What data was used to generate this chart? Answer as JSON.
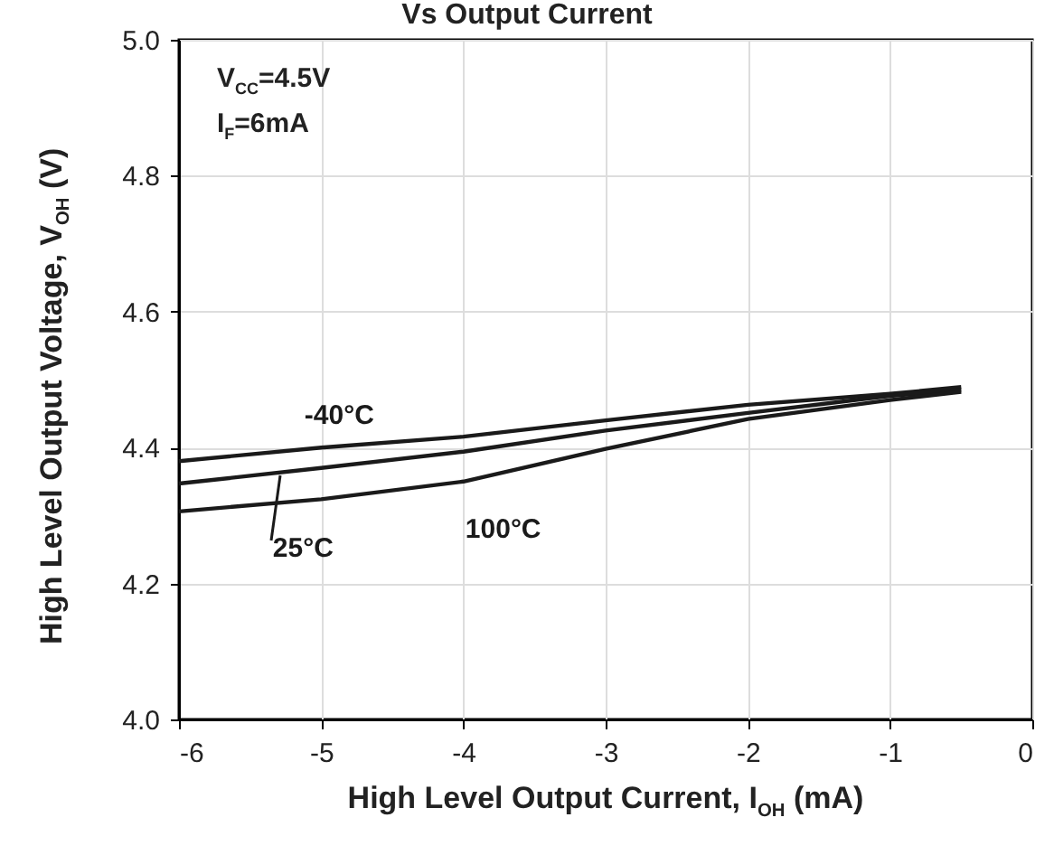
{
  "chart_data": {
    "type": "line",
    "title": "Vs Output Current",
    "xlabel": "High Level Output Current, I$_{OH}$ (mA)",
    "ylabel": "High Level Output Voltage, V$_{OH}$ (V)",
    "annotations": [
      "V$_{CC}$=4.5V",
      "I$_{F}$=6mA"
    ],
    "x": [
      -6,
      -5,
      -4,
      -3,
      -2,
      -1,
      -0.5
    ],
    "series": [
      {
        "name": "-40°C",
        "color": "#1a1a1a",
        "values": [
          4.38,
          4.4,
          4.416,
          4.44,
          4.463,
          4.479,
          4.489
        ]
      },
      {
        "name": "25°C",
        "color": "#1a1a1a",
        "values": [
          4.347,
          4.37,
          4.394,
          4.425,
          4.451,
          4.476,
          4.485
        ]
      },
      {
        "name": "100°C",
        "color": "#1a1a1a",
        "values": [
          4.306,
          4.324,
          4.35,
          4.398,
          4.442,
          4.47,
          4.482
        ]
      }
    ],
    "xlim": [
      -6,
      0
    ],
    "xticks": [
      -6,
      -5,
      -4,
      -3,
      -2,
      -1,
      0
    ],
    "ylim": [
      4.0,
      5.0
    ],
    "yticks": [
      {
        "value": 4.0,
        "label": "4.0"
      },
      {
        "value": 4.2,
        "label": "4.2"
      },
      {
        "value": 4.4,
        "label": "4.4"
      },
      {
        "value": 4.6,
        "label": "4.6"
      },
      {
        "value": 4.8,
        "label": "4.8"
      },
      {
        "value": 5.0,
        "label": "5.0"
      }
    ],
    "grid": true,
    "line_style": "solid"
  }
}
